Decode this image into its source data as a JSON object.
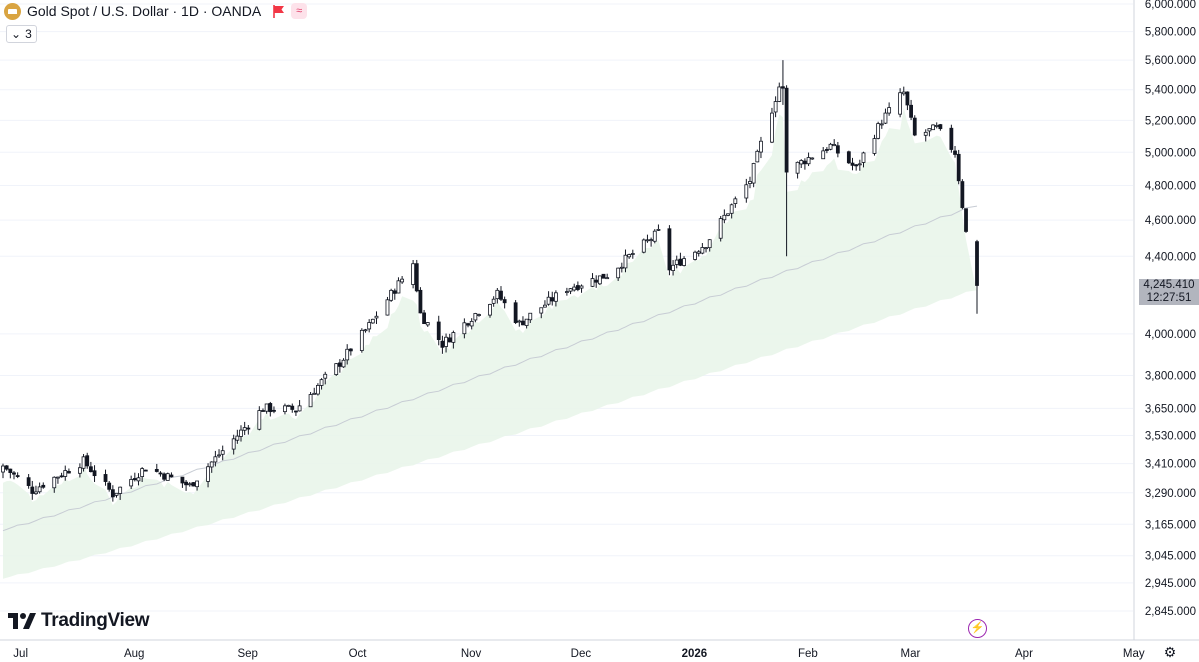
{
  "header": {
    "title": "Gold Spot / U.S. Dollar · 1D · OANDA",
    "collapse_count": "3",
    "brand": "TradingView"
  },
  "last_price": {
    "value": "4,245.410",
    "countdown": "12:27:51",
    "badge_color": "#b2b5be"
  },
  "icons": {
    "symbol": "gold-coin-icon",
    "flag": "red-flag-icon",
    "indicator": "wave-icon",
    "collapse": "chevron-down-icon",
    "replay": "lightning-icon",
    "settings": "gear-icon"
  },
  "colors": {
    "band_fill": "#e8f5e9",
    "band_line": "#c7ccd4",
    "candle_up": "#ffffff",
    "candle_down": "#131722",
    "grid": "#f0f3fa"
  },
  "chart_data": {
    "type": "candlestick",
    "title": "Gold Spot / U.S. Dollar · 1D · OANDA",
    "y_axis": {
      "scale": "log",
      "position": "right",
      "ticks": [
        6000,
        5800,
        5600,
        5400,
        5200,
        5000,
        4800,
        4600,
        4400,
        4000,
        3800,
        3650,
        3530,
        3410,
        3290,
        3165,
        3045,
        2945,
        2845
      ],
      "tick_labels": [
        "6,000.000",
        "5,800.000",
        "5,600.000",
        "5,400.000",
        "5,200.000",
        "5,000.000",
        "4,800.000",
        "4,600.000",
        "4,400.000",
        "4,000.000",
        "3,800.000",
        "3,650.000",
        "3,530.000",
        "3,410.000",
        "3,290.000",
        "3,165.000",
        "3,045.000",
        "2,945.000",
        "2,845.000"
      ]
    },
    "x_axis": {
      "ticks": [
        "2025-07-01",
        "2025-08-01",
        "2025-09-01",
        "2025-10-01",
        "2025-11-01",
        "2025-12-01",
        "2026-01-01",
        "2026-02-01",
        "2026-03-01",
        "2026-04-01",
        "2026-05-01"
      ],
      "tick_labels": [
        "Jul",
        "Aug",
        "Sep",
        "Oct",
        "Nov",
        "Dec",
        "2026",
        "Feb",
        "Mar",
        "Apr",
        "May"
      ],
      "bold_labels": [
        "2026"
      ]
    },
    "anchors": [
      [
        "2025-06-30",
        3400
      ],
      [
        "2025-07-08",
        3300
      ],
      [
        "2025-07-22",
        3420
      ],
      [
        "2025-07-30",
        3285
      ],
      [
        "2025-08-08",
        3395
      ],
      [
        "2025-08-20",
        3318
      ],
      [
        "2025-09-02",
        3530
      ],
      [
        "2025-09-09",
        3650
      ],
      [
        "2025-09-18",
        3645
      ],
      [
        "2025-09-30",
        3860
      ],
      [
        "2025-10-08",
        4040
      ],
      [
        "2025-10-20",
        4360
      ],
      [
        "2025-10-22",
        4100
      ],
      [
        "2025-10-28",
        3950
      ],
      [
        "2025-11-12",
        4200
      ],
      [
        "2025-11-18",
        4050
      ],
      [
        "2025-12-01",
        4230
      ],
      [
        "2025-12-12",
        4300
      ],
      [
        "2025-12-26",
        4530
      ],
      [
        "2025-12-29",
        4335
      ],
      [
        "2026-01-08",
        4470
      ],
      [
        "2026-01-20",
        4830
      ],
      [
        "2026-01-28",
        5420
      ],
      [
        "2026-01-30",
        4880
      ],
      [
        "2026-02-03",
        4940
      ],
      [
        "2026-02-11",
        5040
      ],
      [
        "2026-02-18",
        4900
      ],
      [
        "2026-02-25",
        5200
      ],
      [
        "2026-03-03",
        5380
      ],
      [
        "2026-03-06",
        5100
      ],
      [
        "2026-03-12",
        5150
      ],
      [
        "2026-03-17",
        5000
      ],
      [
        "2026-03-20",
        4530
      ],
      [
        "2026-03-23",
        4245
      ]
    ],
    "ohlc_sample": [
      {
        "date": "2025-06-30",
        "open": 3375,
        "high": 3410,
        "low": 3350,
        "close": 3400
      },
      {
        "date": "2025-10-20",
        "open": 4250,
        "high": 4380,
        "low": 4230,
        "close": 4360
      },
      {
        "date": "2026-01-29",
        "open": 5420,
        "high": 5600,
        "low": 5300,
        "close": 5410
      },
      {
        "date": "2026-01-30",
        "open": 5410,
        "high": 5430,
        "low": 4400,
        "close": 4880
      },
      {
        "date": "2026-03-02",
        "open": 5240,
        "high": 5410,
        "low": 5220,
        "close": 5380
      },
      {
        "date": "2026-03-23",
        "open": 4480,
        "high": 4490,
        "low": 4100,
        "close": 4245
      }
    ],
    "band": {
      "start_date": "2025-06-30",
      "end_date": "2026-03-23",
      "middle": [
        3140,
        4680
      ],
      "lower": [
        2960,
        4220
      ]
    },
    "last_value": 4245.41
  }
}
